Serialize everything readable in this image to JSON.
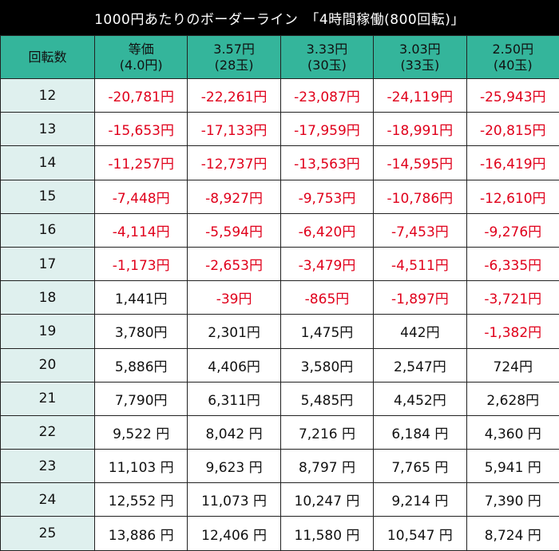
{
  "title": "1000円あたりのボーダーライン　「4時間稼働(800回転)」",
  "header": {
    "rotation_label": "回転数",
    "columns": [
      {
        "line1": "等価",
        "line2": "(4.0円)"
      },
      {
        "line1": "3.57円",
        "line2": "(28玉)"
      },
      {
        "line1": "3.33円",
        "line2": "(30玉)"
      },
      {
        "line1": "3.03円",
        "line2": "(33玉)"
      },
      {
        "line1": "2.50円",
        "line2": "(40玉)"
      }
    ]
  },
  "colors": {
    "header_bg": "#34b59b",
    "rotation_bg": "#dff0ee",
    "negative": "#e0001b"
  },
  "rows": [
    {
      "rot": "12",
      "cells": [
        {
          "v": "-20,781円",
          "neg": true
        },
        {
          "v": "-22,261円",
          "neg": true
        },
        {
          "v": "-23,087円",
          "neg": true
        },
        {
          "v": "-24,119円",
          "neg": true
        },
        {
          "v": "-25,943円",
          "neg": true
        }
      ]
    },
    {
      "rot": "13",
      "cells": [
        {
          "v": "-15,653円",
          "neg": true
        },
        {
          "v": "-17,133円",
          "neg": true
        },
        {
          "v": "-17,959円",
          "neg": true
        },
        {
          "v": "-18,991円",
          "neg": true
        },
        {
          "v": "-20,815円",
          "neg": true
        }
      ]
    },
    {
      "rot": "14",
      "cells": [
        {
          "v": "-11,257円",
          "neg": true
        },
        {
          "v": "-12,737円",
          "neg": true
        },
        {
          "v": "-13,563円",
          "neg": true
        },
        {
          "v": "-14,595円",
          "neg": true
        },
        {
          "v": "-16,419円",
          "neg": true
        }
      ]
    },
    {
      "rot": "15",
      "cells": [
        {
          "v": "-7,448円",
          "neg": true
        },
        {
          "v": "-8,927円",
          "neg": true
        },
        {
          "v": "-9,753円",
          "neg": true
        },
        {
          "v": "-10,786円",
          "neg": true
        },
        {
          "v": "-12,610円",
          "neg": true
        }
      ]
    },
    {
      "rot": "16",
      "cells": [
        {
          "v": "-4,114円",
          "neg": true
        },
        {
          "v": "-5,594円",
          "neg": true
        },
        {
          "v": "-6,420円",
          "neg": true
        },
        {
          "v": "-7,453円",
          "neg": true
        },
        {
          "v": "-9,276円",
          "neg": true
        }
      ]
    },
    {
      "rot": "17",
      "cells": [
        {
          "v": "-1,173円",
          "neg": true
        },
        {
          "v": "-2,653円",
          "neg": true
        },
        {
          "v": "-3,479円",
          "neg": true
        },
        {
          "v": "-4,511円",
          "neg": true
        },
        {
          "v": "-6,335円",
          "neg": true
        }
      ]
    },
    {
      "rot": "18",
      "cells": [
        {
          "v": "1,441円",
          "neg": false
        },
        {
          "v": "-39円",
          "neg": true
        },
        {
          "v": "-865円",
          "neg": true
        },
        {
          "v": "-1,897円",
          "neg": true
        },
        {
          "v": "-3,721円",
          "neg": true
        }
      ]
    },
    {
      "rot": "19",
      "cells": [
        {
          "v": "3,780円",
          "neg": false
        },
        {
          "v": "2,301円",
          "neg": false
        },
        {
          "v": "1,475円",
          "neg": false
        },
        {
          "v": "442円",
          "neg": false
        },
        {
          "v": "-1,382円",
          "neg": true
        }
      ]
    },
    {
      "rot": "20",
      "cells": [
        {
          "v": "5,886円",
          "neg": false
        },
        {
          "v": "4,406円",
          "neg": false
        },
        {
          "v": "3,580円",
          "neg": false
        },
        {
          "v": "2,547円",
          "neg": false
        },
        {
          "v": "724円",
          "neg": false
        }
      ]
    },
    {
      "rot": "21",
      "cells": [
        {
          "v": "7,790円",
          "neg": false
        },
        {
          "v": "6,311円",
          "neg": false
        },
        {
          "v": "5,485円",
          "neg": false
        },
        {
          "v": "4,452円",
          "neg": false
        },
        {
          "v": "2,628円",
          "neg": false
        }
      ]
    },
    {
      "rot": "22",
      "cells": [
        {
          "v": "9,522 円",
          "neg": false
        },
        {
          "v": "8,042 円",
          "neg": false
        },
        {
          "v": "7,216 円",
          "neg": false
        },
        {
          "v": "6,184 円",
          "neg": false
        },
        {
          "v": "4,360 円",
          "neg": false
        }
      ]
    },
    {
      "rot": "23",
      "cells": [
        {
          "v": "11,103 円",
          "neg": false
        },
        {
          "v": "9,623 円",
          "neg": false
        },
        {
          "v": "8,797 円",
          "neg": false
        },
        {
          "v": "7,765 円",
          "neg": false
        },
        {
          "v": "5,941 円",
          "neg": false
        }
      ]
    },
    {
      "rot": "24",
      "cells": [
        {
          "v": "12,552 円",
          "neg": false
        },
        {
          "v": "11,073 円",
          "neg": false
        },
        {
          "v": "10,247 円",
          "neg": false
        },
        {
          "v": "9,214 円",
          "neg": false
        },
        {
          "v": "7,390 円",
          "neg": false
        }
      ]
    },
    {
      "rot": "25",
      "cells": [
        {
          "v": "13,886 円",
          "neg": false
        },
        {
          "v": "12,406 円",
          "neg": false
        },
        {
          "v": "11,580 円",
          "neg": false
        },
        {
          "v": "10,547 円",
          "neg": false
        },
        {
          "v": "8,724 円",
          "neg": false
        }
      ]
    }
  ]
}
